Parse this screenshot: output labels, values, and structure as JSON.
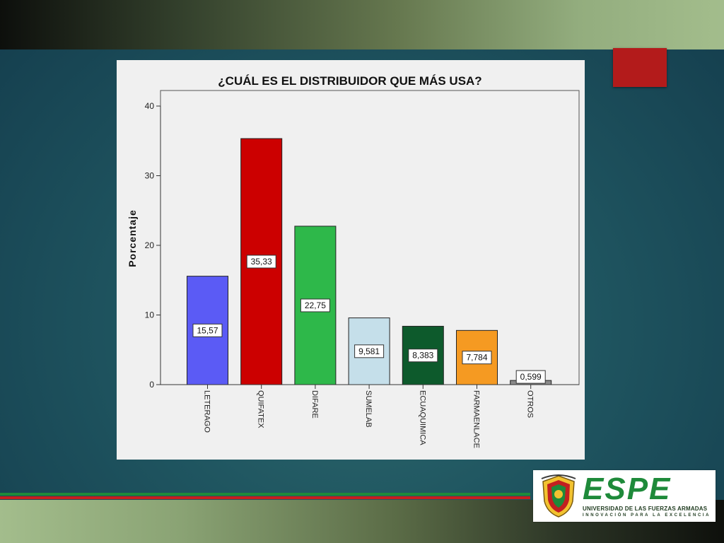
{
  "slide": {
    "colors": {
      "accent_red": "#b31b1b",
      "stripe_green": "#1f8a3a",
      "stripe_red": "#c71e1e"
    }
  },
  "logo": {
    "name": "ESPE",
    "subtitle": "UNIVERSIDAD DE LAS FUERZAS ARMADAS",
    "tagline": "INNOVACIÓN PARA LA EXCELENCIA",
    "icon": "espe-crest-icon"
  },
  "chart_data": {
    "type": "bar",
    "title": "¿CUÁL ES EL DISTRIBUIDOR QUE MÁS USA?",
    "xlabel": "",
    "ylabel": "Porcentaje",
    "ylim": [
      0,
      40
    ],
    "yticks": [
      0,
      10,
      20,
      30,
      40
    ],
    "grid": false,
    "categories": [
      "LETERAGO",
      "QUIFATEX",
      "DIFARE",
      "SUMELAB",
      "ECUAQUIMICA",
      "FARMAENLACE",
      "OTROS"
    ],
    "values": [
      15.57,
      35.33,
      22.75,
      9.581,
      8.383,
      7.784,
      0.599
    ],
    "data_labels": [
      "15,57",
      "35,33",
      "22,75",
      "9,581",
      "8,383",
      "7,784",
      "0,599"
    ],
    "colors": [
      "#5b5bf5",
      "#cc0000",
      "#2eb84a",
      "#c5dfea",
      "#0d5a2c",
      "#f59a22",
      "#8a8a8a"
    ]
  }
}
